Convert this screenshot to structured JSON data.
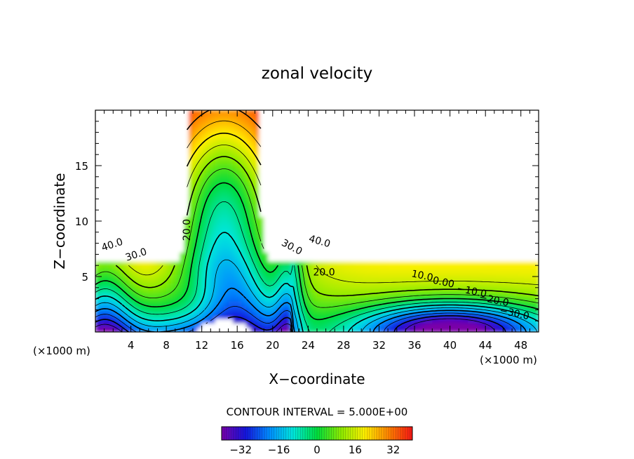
{
  "chart_data": {
    "type": "heatmap",
    "title": "zonal velocity",
    "xlabel": "X−coordinate",
    "ylabel": "Z−coordinate",
    "x_unit_left": "(×1000 m)",
    "x_unit_right": "(×1000 m)",
    "xlim": [
      0,
      50
    ],
    "ylim": [
      0,
      20
    ],
    "x_ticks": [
      4,
      8,
      12,
      16,
      20,
      24,
      28,
      32,
      36,
      40,
      44,
      48
    ],
    "x_tick_labels": [
      "4",
      "8",
      "12",
      "16",
      "20",
      "24",
      "28",
      "32",
      "36",
      "40",
      "44",
      "48"
    ],
    "y_ticks": [
      5,
      10,
      15
    ],
    "y_tick_labels": [
      "5",
      "10",
      "15"
    ],
    "contour_interval_text": "CONTOUR INTERVAL = 5.000E+00",
    "contour_interval": 5.0,
    "contour_labels": [
      {
        "text": "40.0",
        "x": 2.0,
        "y": 7.6
      },
      {
        "text": "30.0",
        "x": 4.7,
        "y": 6.7
      },
      {
        "text": "20.0",
        "x": 10.7,
        "y": 9.2
      },
      {
        "text": "30.0",
        "x": 22.0,
        "y": 7.4
      },
      {
        "text": "40.0",
        "x": 25.2,
        "y": 7.9
      },
      {
        "text": "20.0",
        "x": 25.8,
        "y": 5.1
      },
      {
        "text": "10.0",
        "x": 36.8,
        "y": 4.8
      },
      {
        "text": "0.00",
        "x": 39.2,
        "y": 4.2
      },
      {
        "text": "−10.0",
        "x": 42.4,
        "y": 3.4
      },
      {
        "text": "−20.0",
        "x": 44.9,
        "y": 2.6
      },
      {
        "text": "−30.0",
        "x": 47.2,
        "y": 1.4
      }
    ],
    "colorbar": {
      "min": -40,
      "max": 40,
      "tick_values": [
        -32,
        -16,
        0,
        16,
        32
      ],
      "tick_labels": [
        "−32",
        "−16",
        "0",
        "16",
        "32"
      ]
    }
  }
}
